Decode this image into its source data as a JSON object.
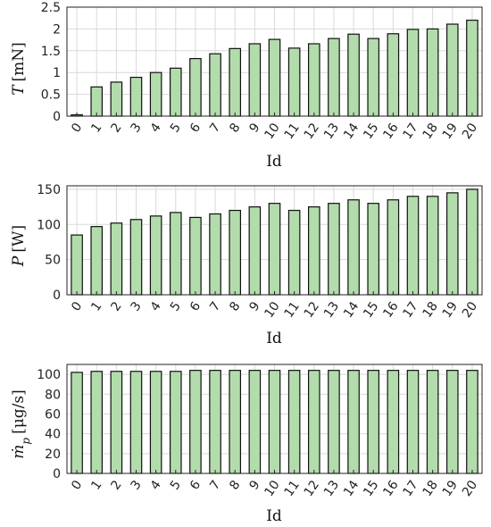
{
  "chart_data": [
    {
      "type": "bar",
      "categories": [
        "0",
        "1",
        "2",
        "3",
        "4",
        "5",
        "6",
        "7",
        "8",
        "9",
        "10",
        "11",
        "12",
        "13",
        "14",
        "15",
        "16",
        "17",
        "18",
        "19",
        "20"
      ],
      "values": [
        0.03,
        0.67,
        0.78,
        0.89,
        1.0,
        1.1,
        1.32,
        1.43,
        1.55,
        1.66,
        1.76,
        1.56,
        1.66,
        1.78,
        1.88,
        1.78,
        1.89,
        1.99,
        2.0,
        2.11,
        2.2
      ],
      "xlabel": "Id",
      "ylabel": {
        "symbol": "T",
        "unit": "[mN]"
      },
      "ylim": [
        0,
        2.5
      ],
      "yticks": [
        "0",
        "0.5",
        "1",
        "1.5",
        "2",
        "2.5"
      ],
      "grid": true,
      "bar_color": "#b3dcac"
    },
    {
      "type": "bar",
      "categories": [
        "0",
        "1",
        "2",
        "3",
        "4",
        "5",
        "6",
        "7",
        "8",
        "9",
        "10",
        "11",
        "12",
        "13",
        "14",
        "15",
        "16",
        "17",
        "18",
        "19",
        "20"
      ],
      "values": [
        85,
        97,
        102,
        107,
        112,
        117,
        110,
        115,
        120,
        125,
        130,
        120,
        125,
        130,
        135,
        130,
        135,
        140,
        140,
        145,
        150
      ],
      "xlabel": "Id",
      "ylabel": {
        "symbol": "P",
        "unit": "[W]"
      },
      "ylim": [
        0,
        155
      ],
      "yticks": [
        "0",
        "50",
        "100",
        "150"
      ],
      "grid": true,
      "bar_color": "#b3dcac"
    },
    {
      "type": "bar",
      "categories": [
        "0",
        "1",
        "2",
        "3",
        "4",
        "5",
        "6",
        "7",
        "8",
        "9",
        "10",
        "11",
        "12",
        "13",
        "14",
        "15",
        "16",
        "17",
        "18",
        "19",
        "20"
      ],
      "values": [
        102,
        103,
        103,
        103,
        103,
        103,
        104,
        104,
        104,
        104,
        104,
        104,
        104,
        104,
        104,
        104,
        104,
        104,
        104,
        104,
        104
      ],
      "xlabel": "Id",
      "ylabel": {
        "symbol": "ṁ",
        "sub": "p",
        "unit": "[μg/s]"
      },
      "ylim": [
        0,
        110
      ],
      "yticks": [
        "0",
        "20",
        "40",
        "60",
        "80",
        "100"
      ],
      "grid": true,
      "bar_color": "#b3dcac"
    }
  ]
}
